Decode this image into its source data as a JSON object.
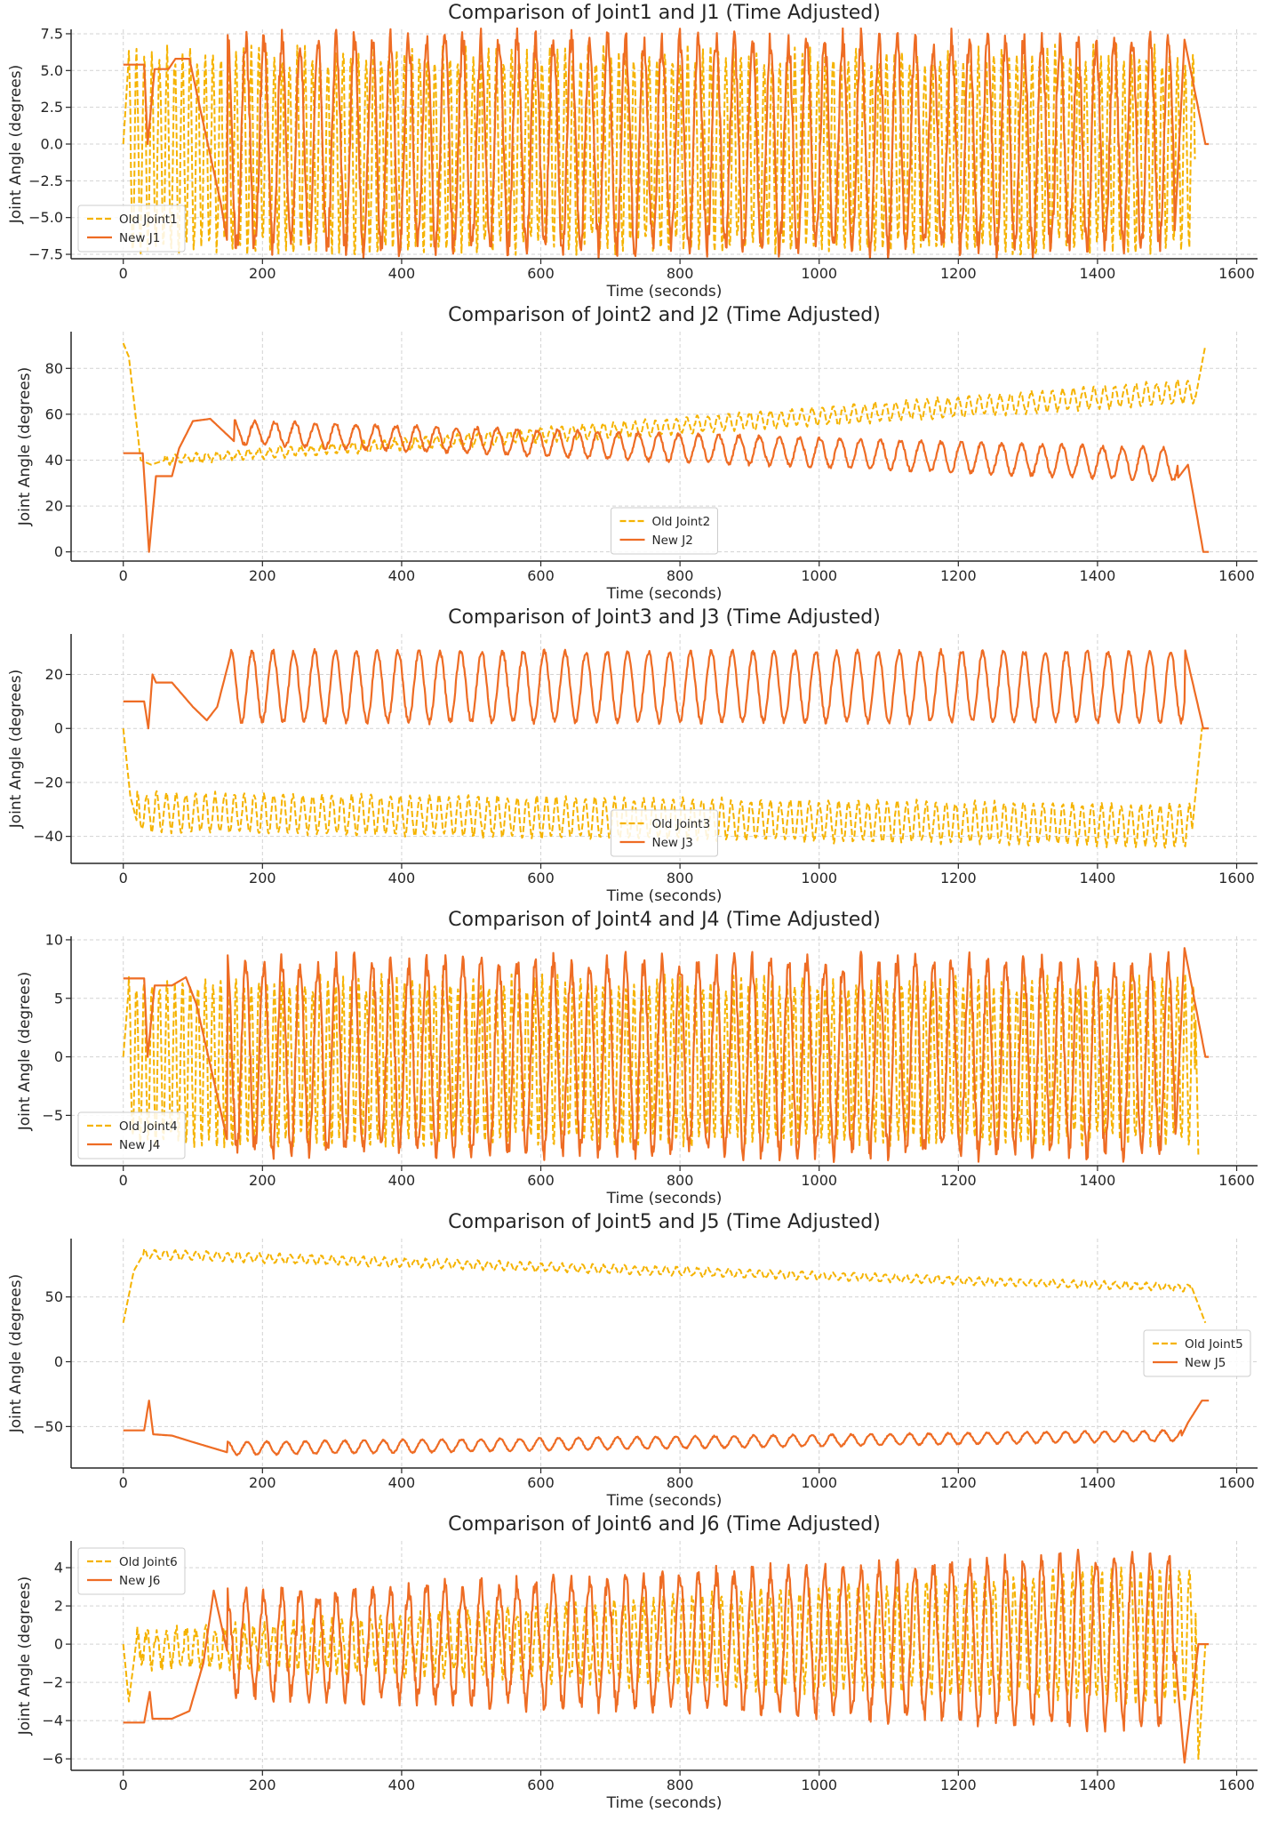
{
  "colors": {
    "old": "#f5b301",
    "new": "#ee6c24",
    "grid": "#d3d3d3",
    "axis": "#262626"
  },
  "chart_data": [
    {
      "type": "line",
      "title": "Comparison of Joint1 and J1 (Time Adjusted)",
      "xlabel": "Time (seconds)",
      "ylabel": "Joint Angle (degrees)",
      "xlim": [
        -75,
        1630
      ],
      "ylim": [
        -7.8,
        7.8
      ],
      "xticks": [
        0,
        200,
        400,
        600,
        800,
        1000,
        1200,
        1400,
        1600
      ],
      "yticks": [
        7.5,
        5.0,
        2.5,
        0.0,
        -2.5,
        -5.0,
        -7.5
      ],
      "grid": true,
      "legend_position": "lower-left",
      "series": [
        {
          "name": "Old Joint1",
          "style": "dashed",
          "t_end": 1540,
          "keypoints": [
            [
              0,
              0
            ],
            [
              8,
              6.0
            ],
            [
              1540,
              6.0
            ],
            [
              1550,
              0
            ]
          ],
          "osc": {
            "t0": 8,
            "t1": 1540,
            "period": 11,
            "high": 6.0,
            "low": -7.0,
            "jitter": 0.8
          }
        },
        {
          "name": "New J1",
          "style": "solid",
          "t_end": 1560,
          "keypoints": [
            [
              0,
              5.4
            ],
            [
              30,
              5.4
            ],
            [
              35,
              0
            ],
            [
              45,
              5.1
            ],
            [
              65,
              5.1
            ],
            [
              75,
              5.8
            ],
            [
              95,
              5.8
            ],
            [
              110,
              2.5
            ],
            [
              140,
              -4
            ],
            [
              150,
              -6.8
            ],
            [
              1510,
              -6.8
            ],
            [
              1525,
              7.1
            ],
            [
              1555,
              0
            ],
            [
              1560,
              0
            ]
          ],
          "osc": {
            "t0": 150,
            "t1": 1510,
            "period": 26,
            "high": 7.0,
            "low": -7.0,
            "jitter": 0.9
          }
        }
      ]
    },
    {
      "type": "line",
      "title": "Comparison of Joint2 and J2 (Time Adjusted)",
      "xlabel": "Time (seconds)",
      "ylabel": "Joint Angle (degrees)",
      "xlim": [
        -75,
        1630
      ],
      "ylim": [
        -4,
        96
      ],
      "xticks": [
        0,
        200,
        400,
        600,
        800,
        1000,
        1200,
        1400,
        1600
      ],
      "yticks": [
        80,
        60,
        40,
        20,
        0
      ],
      "grid": true,
      "legend_position": "lower-center",
      "series": [
        {
          "name": "Old Joint2",
          "style": "dashed",
          "t_end": 1555,
          "keypoints": [
            [
              0,
              91
            ],
            [
              8,
              85
            ],
            [
              25,
              40
            ],
            [
              40,
              38
            ],
            [
              60,
              40
            ],
            [
              1540,
              66
            ],
            [
              1555,
              90
            ]
          ],
          "osc": {
            "t0": 60,
            "t1": 1540,
            "period": 15,
            "amp_start": 1.5,
            "amp_end": 5.0,
            "offset_start": 40,
            "offset_end": 70,
            "jitter": 0.8
          }
        },
        {
          "name": "New J2",
          "style": "solid",
          "t_end": 1560,
          "keypoints": [
            [
              0,
              43
            ],
            [
              28,
              43
            ],
            [
              37,
              0
            ],
            [
              47,
              33
            ],
            [
              70,
              33
            ],
            [
              80,
              45
            ],
            [
              100,
              57
            ],
            [
              125,
              58
            ],
            [
              160,
              48
            ],
            [
              1515,
              32
            ],
            [
              1530,
              38
            ],
            [
              1552,
              0
            ],
            [
              1560,
              0
            ]
          ],
          "osc": {
            "t0": 160,
            "t1": 1515,
            "period": 29,
            "amp_start": 5.0,
            "amp_end": 7.0,
            "offset_start": 52,
            "offset_end": 38,
            "jitter": 0.8
          }
        }
      ]
    },
    {
      "type": "line",
      "title": "Comparison of Joint3 and J3 (Time Adjusted)",
      "xlabel": "Time (seconds)",
      "ylabel": "Joint Angle (degrees)",
      "xlim": [
        -75,
        1630
      ],
      "ylim": [
        -50,
        35
      ],
      "xticks": [
        0,
        200,
        400,
        600,
        800,
        1000,
        1200,
        1400,
        1600
      ],
      "yticks": [
        20,
        0,
        -20,
        -40
      ],
      "grid": true,
      "legend_position": "lower-center",
      "series": [
        {
          "name": "Old Joint3",
          "style": "dashed",
          "t_end": 1555,
          "keypoints": [
            [
              0,
              0
            ],
            [
              10,
              -25
            ],
            [
              20,
              -35
            ],
            [
              1535,
              -40
            ],
            [
              1550,
              0
            ]
          ],
          "osc": {
            "t0": 20,
            "t1": 1535,
            "period": 14,
            "amp_start": 7.0,
            "amp_end": 7.5,
            "offset_start": -31,
            "offset_end": -36,
            "jitter": 1.0
          }
        },
        {
          "name": "New J3",
          "style": "solid",
          "t_end": 1560,
          "keypoints": [
            [
              0,
              10
            ],
            [
              30,
              10
            ],
            [
              36,
              0
            ],
            [
              42,
              20
            ],
            [
              47,
              17
            ],
            [
              70,
              17
            ],
            [
              100,
              8
            ],
            [
              120,
              3
            ],
            [
              135,
              8
            ],
            [
              155,
              28
            ],
            [
              1525,
              30
            ],
            [
              1552,
              0
            ],
            [
              1560,
              0
            ]
          ],
          "osc": {
            "t0": 155,
            "t1": 1525,
            "period": 30,
            "amp_start": 13.0,
            "amp_end": 13.0,
            "offset_start": 15.5,
            "offset_end": 15.5,
            "jitter": 1.0
          }
        }
      ]
    },
    {
      "type": "line",
      "title": "Comparison of Joint4 and J4 (Time Adjusted)",
      "xlabel": "Time (seconds)",
      "ylabel": "Joint Angle (degrees)",
      "xlim": [
        -75,
        1630
      ],
      "ylim": [
        -9.3,
        10.3
      ],
      "xticks": [
        0,
        200,
        400,
        600,
        800,
        1000,
        1200,
        1400,
        1600
      ],
      "yticks": [
        10,
        5,
        0,
        -5
      ],
      "grid": true,
      "legend_position": "lower-left",
      "series": [
        {
          "name": "Old Joint4",
          "style": "dashed",
          "t_end": 1545,
          "keypoints": [
            [
              0,
              0
            ],
            [
              8,
              6.0
            ],
            [
              1540,
              6.0
            ],
            [
              1545,
              -8.5
            ]
          ],
          "osc": {
            "t0": 8,
            "t1": 1540,
            "period": 11,
            "high": 6.3,
            "low": -7.2,
            "jitter": 0.8
          }
        },
        {
          "name": "New J4",
          "style": "solid",
          "t_end": 1560,
          "keypoints": [
            [
              0,
              6.7
            ],
            [
              30,
              6.7
            ],
            [
              35,
              0
            ],
            [
              45,
              6.1
            ],
            [
              70,
              6.1
            ],
            [
              90,
              6.8
            ],
            [
              105,
              4.5
            ],
            [
              130,
              -2
            ],
            [
              150,
              -7.3
            ],
            [
              1512,
              -7.3
            ],
            [
              1525,
              9.3
            ],
            [
              1555,
              0
            ],
            [
              1560,
              0
            ]
          ],
          "osc": {
            "t0": 150,
            "t1": 1512,
            "period": 26,
            "high": 8.0,
            "low": -8.0,
            "jitter": 1.0
          }
        }
      ]
    },
    {
      "type": "line",
      "title": "Comparison of Joint5 and J5 (Time Adjusted)",
      "xlabel": "Time (seconds)",
      "ylabel": "Joint Angle (degrees)",
      "xlim": [
        -75,
        1630
      ],
      "ylim": [
        -82,
        95
      ],
      "xticks": [
        0,
        200,
        400,
        600,
        800,
        1000,
        1200,
        1400,
        1600
      ],
      "yticks": [
        50,
        0,
        -50
      ],
      "grid": true,
      "legend_position": "center-right",
      "series": [
        {
          "name": "Old Joint5",
          "style": "dashed",
          "t_end": 1555,
          "keypoints": [
            [
              0,
              30
            ],
            [
              15,
              70
            ],
            [
              30,
              84
            ],
            [
              1535,
              58
            ],
            [
              1555,
              30
            ]
          ],
          "osc": {
            "t0": 30,
            "t1": 1535,
            "period": 15,
            "amp_start": 3.5,
            "amp_end": 2.5,
            "offset_start": 83,
            "offset_end": 57,
            "jitter": 0.8
          }
        },
        {
          "name": "New J5",
          "style": "solid",
          "t_end": 1560,
          "keypoints": [
            [
              0,
              -53
            ],
            [
              30,
              -53
            ],
            [
              37,
              -30
            ],
            [
              43,
              -56
            ],
            [
              70,
              -57
            ],
            [
              100,
              -62
            ],
            [
              150,
              -70
            ],
            [
              1520,
              -58
            ],
            [
              1530,
              -47
            ],
            [
              1550,
              -30
            ],
            [
              1560,
              -30
            ]
          ],
          "osc": {
            "t0": 150,
            "t1": 1520,
            "period": 28,
            "amp_start": 5.0,
            "amp_end": 4.0,
            "offset_start": -67,
            "offset_end": -57,
            "jitter": 0.6
          }
        }
      ]
    },
    {
      "type": "line",
      "title": "Comparison of Joint6 and J6 (Time Adjusted)",
      "xlabel": "Time (seconds)",
      "ylabel": "Joint Angle (degrees)",
      "xlim": [
        -75,
        1630
      ],
      "ylim": [
        -6.6,
        5.4
      ],
      "xticks": [
        0,
        200,
        400,
        600,
        800,
        1000,
        1200,
        1400,
        1600
      ],
      "yticks": [
        4,
        2,
        0,
        -2,
        -4,
        -6
      ],
      "grid": true,
      "legend_position": "upper-left",
      "series": [
        {
          "name": "Old Joint6",
          "style": "dashed",
          "t_end": 1555,
          "keypoints": [
            [
              0,
              0
            ],
            [
              8,
              -3
            ],
            [
              20,
              0.5
            ],
            [
              1540,
              3.5
            ],
            [
              1545,
              -6
            ],
            [
              1555,
              0
            ]
          ],
          "osc": {
            "t0": 20,
            "t1": 1540,
            "period": 14,
            "amp_start": 0.8,
            "amp_end": 3.5,
            "offset_start": -0.2,
            "offset_end": 0.5,
            "jitter": 0.4
          }
        },
        {
          "name": "New J6",
          "style": "solid",
          "t_end": 1560,
          "keypoints": [
            [
              0,
              -4.1
            ],
            [
              30,
              -4.1
            ],
            [
              38,
              -2.5
            ],
            [
              42,
              -3.9
            ],
            [
              70,
              -3.9
            ],
            [
              95,
              -3.5
            ],
            [
              115,
              -1.0
            ],
            [
              130,
              2.8
            ],
            [
              150,
              -0.5
            ],
            [
              1510,
              0
            ],
            [
              1525,
              -6.2
            ],
            [
              1545,
              0
            ],
            [
              1560,
              0
            ]
          ],
          "osc": {
            "t0": 150,
            "t1": 1510,
            "period": 26,
            "amp_start": 2.5,
            "amp_end": 4.5,
            "offset_start": 0.0,
            "offset_end": 0.2,
            "jitter": 0.5
          }
        }
      ]
    }
  ]
}
